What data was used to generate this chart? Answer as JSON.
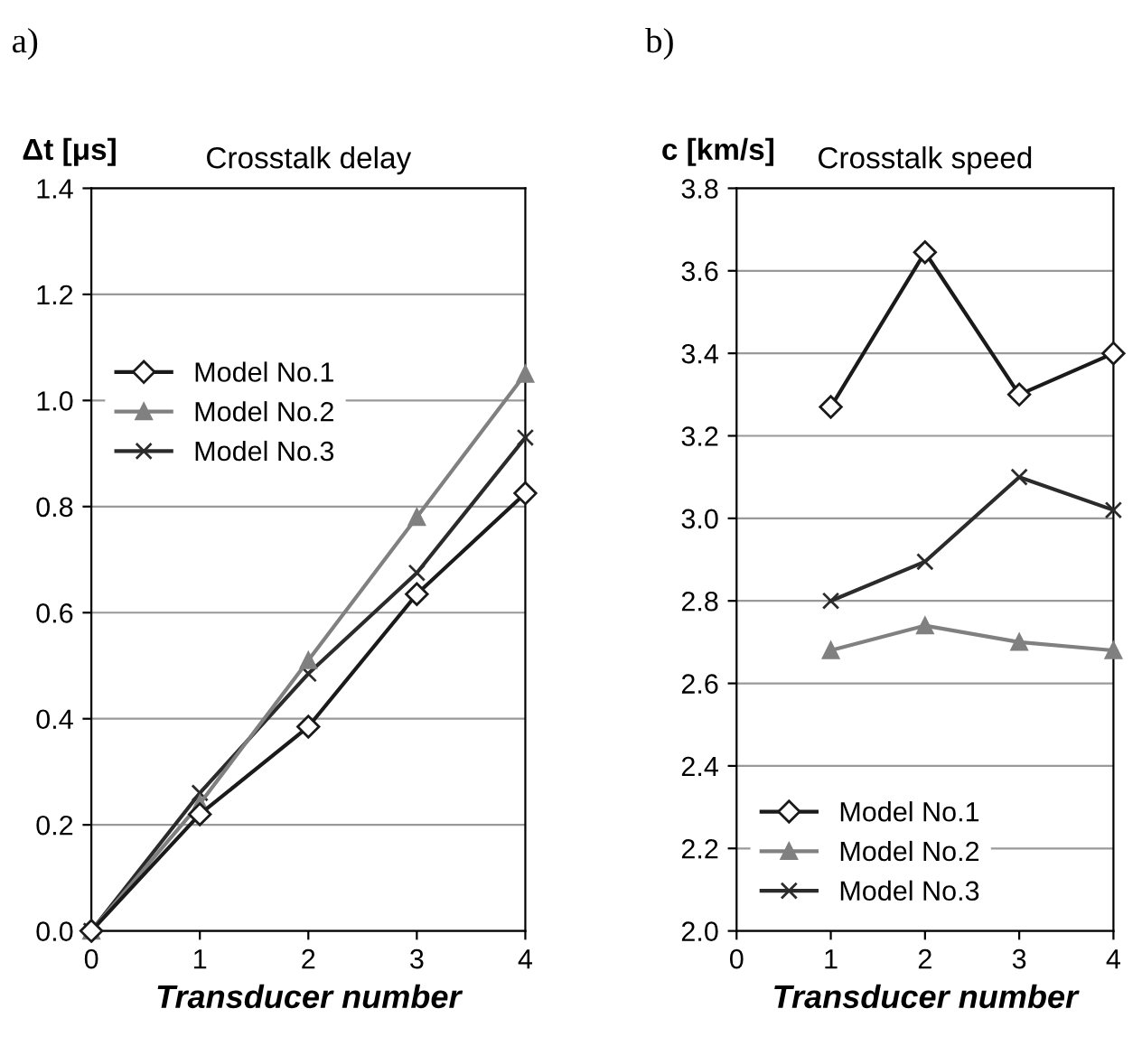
{
  "chart_data": [
    {
      "type": "line",
      "title": "Crosstalk delay",
      "xlabel": "Transducer number",
      "ylabel": "Δt [μs]",
      "annotations": [
        "a)"
      ],
      "x": [
        0,
        1,
        2,
        3,
        4
      ],
      "xlim": [
        0,
        4
      ],
      "xticks": [
        0,
        1,
        2,
        3,
        4
      ],
      "ylim": [
        0,
        1.4
      ],
      "yticks": [
        {
          "value": 0,
          "label": "0.0"
        },
        {
          "value": 0.2,
          "label": "0.2"
        },
        {
          "value": 0.4,
          "label": "0.4"
        },
        {
          "value": 0.6,
          "label": "0.6"
        },
        {
          "value": 0.8,
          "label": "0.8"
        },
        {
          "value": 1.0,
          "label": "1.0"
        },
        {
          "value": 1.2,
          "label": "1.2"
        },
        {
          "value": 1.4,
          "label": "1.4"
        }
      ],
      "grid": "y",
      "legend": "top left",
      "series": [
        {
          "name": "Model No.1",
          "color": "#1a1a1a",
          "marker": "diamond",
          "values": [
            0,
            0.22,
            0.385,
            0.635,
            0.825
          ]
        },
        {
          "name": "Model No.2",
          "color": "#808080",
          "marker": "triangle",
          "values": [
            0,
            0.24,
            0.51,
            0.78,
            1.05
          ]
        },
        {
          "name": "Model No.3",
          "color": "#2b2b2b",
          "marker": "cross",
          "values": [
            0,
            0.26,
            0.485,
            0.675,
            0.93
          ]
        }
      ]
    },
    {
      "type": "line",
      "title": "Crosstalk speed",
      "xlabel": "Transducer number",
      "ylabel": "c [km/s]",
      "annotations": [
        "b)"
      ],
      "x": [
        1,
        2,
        3,
        4
      ],
      "xlim": [
        0,
        4
      ],
      "xticks": [
        0,
        1,
        2,
        3,
        4
      ],
      "ylim": [
        2.0,
        3.8
      ],
      "yticks": [
        {
          "value": 2.0,
          "label": "2.0"
        },
        {
          "value": 2.2,
          "label": "2.2"
        },
        {
          "value": 2.4,
          "label": "2.4"
        },
        {
          "value": 2.6,
          "label": "2.6"
        },
        {
          "value": 2.8,
          "label": "2.8"
        },
        {
          "value": 3.0,
          "label": "3.0"
        },
        {
          "value": 3.2,
          "label": "3.2"
        },
        {
          "value": 3.4,
          "label": "3.4"
        },
        {
          "value": 3.6,
          "label": "3.6"
        },
        {
          "value": 3.8,
          "label": "3.8"
        }
      ],
      "grid": "y",
      "legend": "bottom left",
      "series": [
        {
          "name": "Model No.1",
          "color": "#1a1a1a",
          "marker": "diamond",
          "values": [
            3.27,
            3.645,
            3.3,
            3.4
          ]
        },
        {
          "name": "Model No.2",
          "color": "#808080",
          "marker": "triangle",
          "values": [
            2.68,
            2.74,
            2.7,
            2.68
          ]
        },
        {
          "name": "Model No.3",
          "color": "#2b2b2b",
          "marker": "cross",
          "values": [
            2.8,
            2.895,
            3.1,
            3.02
          ]
        }
      ]
    }
  ]
}
